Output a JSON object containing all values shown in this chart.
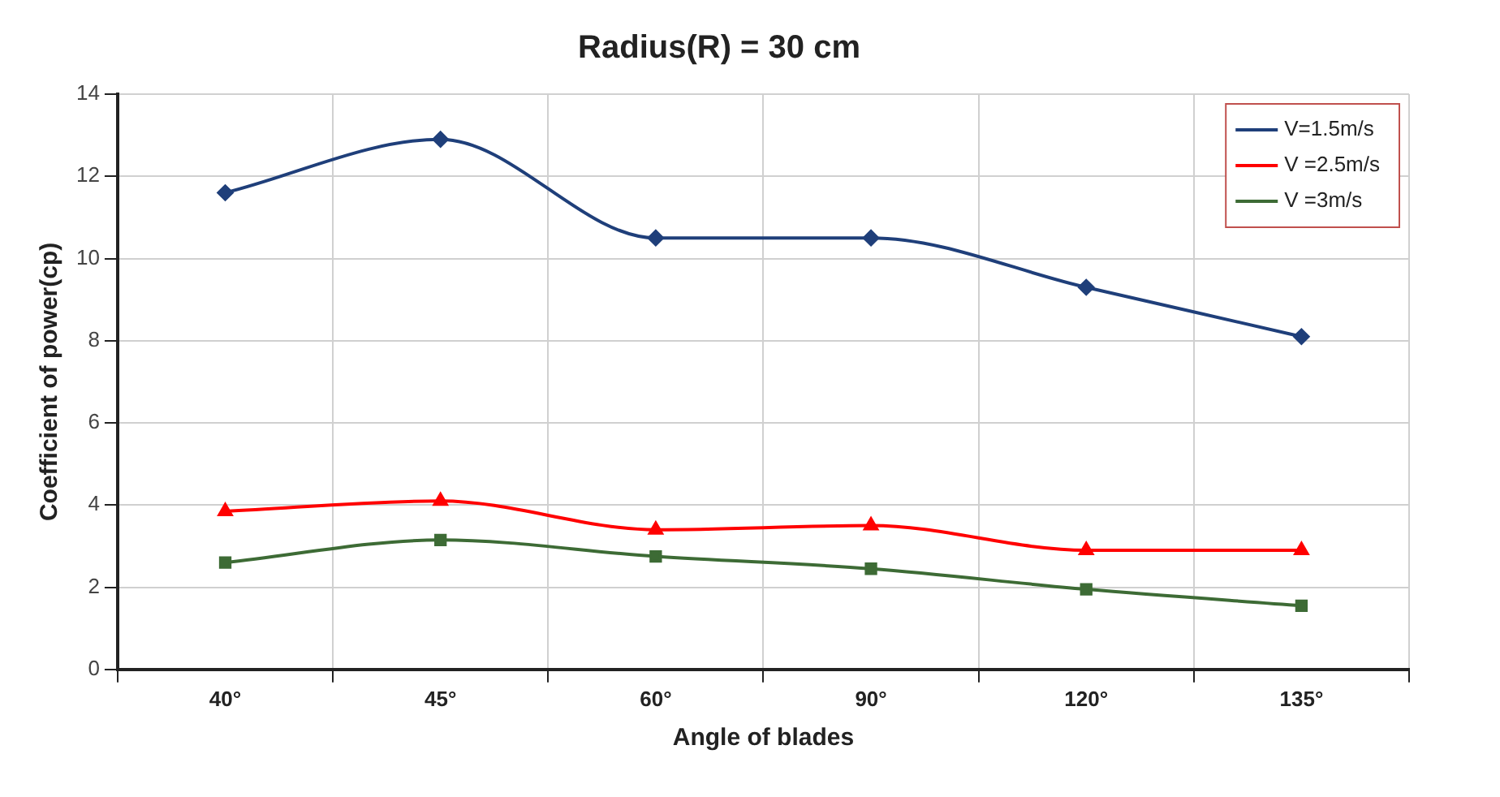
{
  "chart_data": {
    "type": "line",
    "title": "Radius(R) = 30 cm",
    "xlabel": "Angle of blades",
    "ylabel": "Coefficient of power(cp)",
    "categories": [
      "40°",
      "45°",
      "60°",
      "90°",
      "120°",
      "135°"
    ],
    "series": [
      {
        "name": "V=1.5m/s",
        "color": "#1f3f7a",
        "marker": "diamond",
        "values": [
          11.6,
          12.9,
          10.5,
          10.5,
          9.3,
          8.1
        ]
      },
      {
        "name": "V =2.5m/s",
        "color": "#ff0000",
        "marker": "triangle",
        "values": [
          3.85,
          4.1,
          3.4,
          3.5,
          2.9,
          2.9
        ]
      },
      {
        "name": "V =3m/s",
        "color": "#3d6b35",
        "marker": "square",
        "values": [
          2.6,
          3.15,
          2.75,
          2.45,
          1.95,
          1.55
        ]
      }
    ],
    "ylim": [
      0,
      14
    ],
    "yticks": [
      0,
      2,
      4,
      6,
      8,
      10,
      12,
      14
    ],
    "grid": true,
    "legend": "top right",
    "line_style": "solid"
  }
}
